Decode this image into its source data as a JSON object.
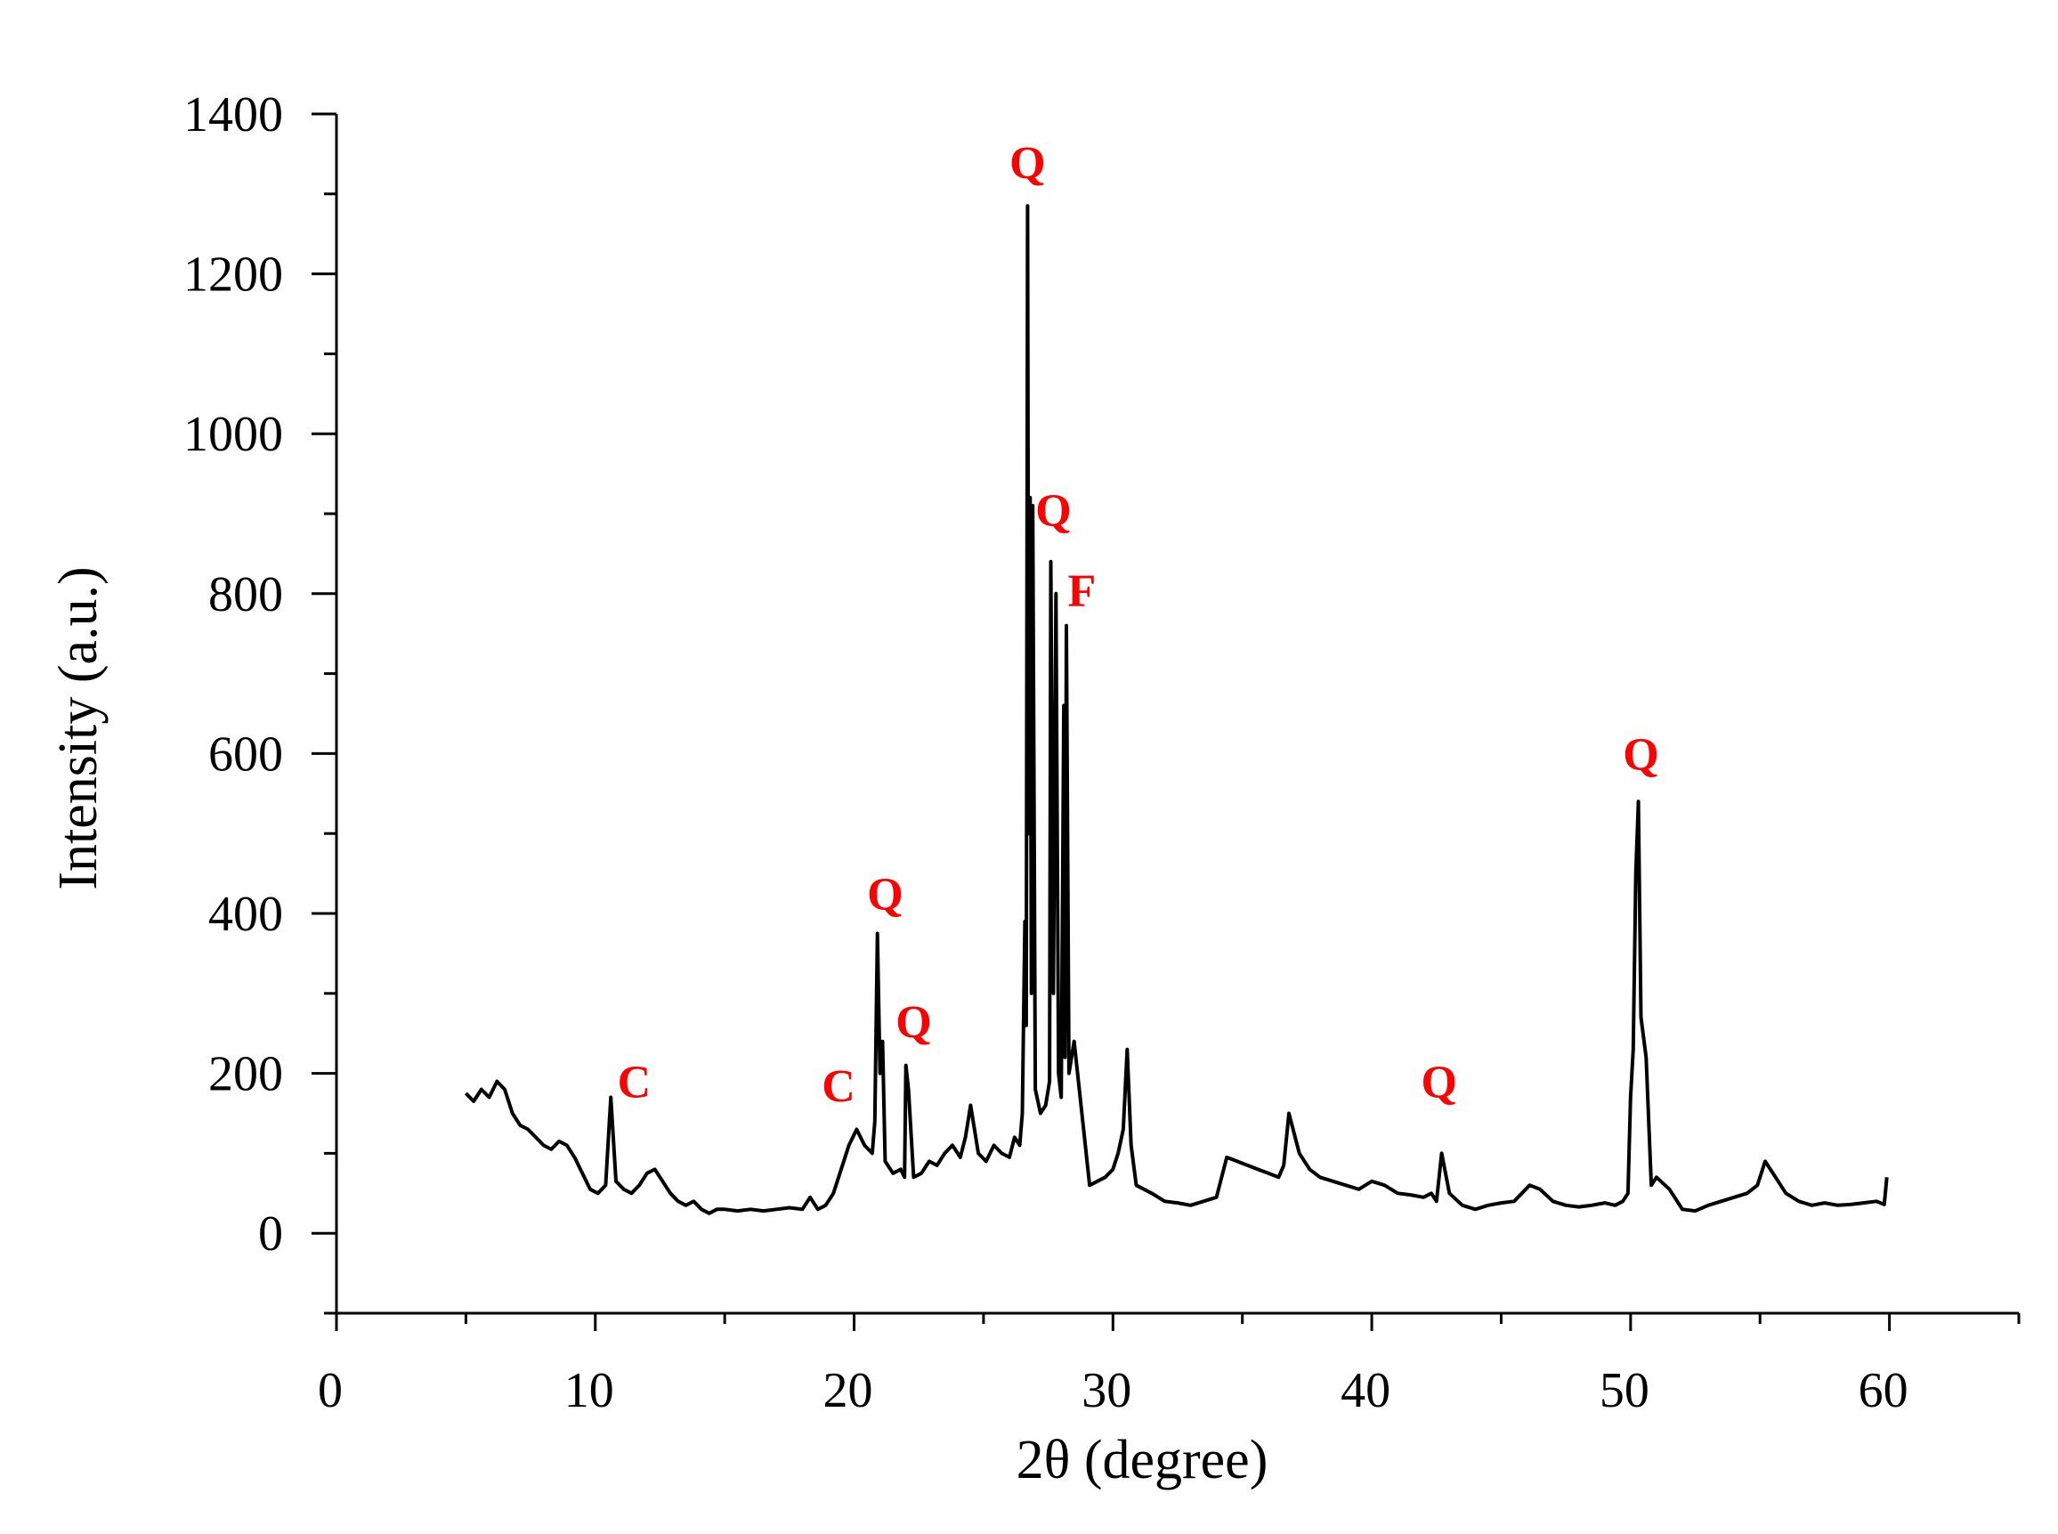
{
  "chart_data": {
    "type": "line",
    "title": "",
    "xlabel": "2θ (degree)",
    "ylabel": "Intensity (a.u.)",
    "xlim": [
      0,
      65
    ],
    "ylim": [
      -100,
      1400
    ],
    "xticks": [
      0,
      10,
      20,
      30,
      40,
      50,
      60
    ],
    "yticks": [
      0,
      200,
      400,
      600,
      800,
      1000,
      1200,
      1400
    ],
    "xtick_labels": [
      "0",
      "10",
      "20",
      "30",
      "40",
      "50",
      "60"
    ],
    "ytick_labels": [
      "0",
      "200",
      "400",
      "600",
      "800",
      "1000",
      "1200",
      "1400"
    ],
    "grid": false,
    "legend": "none",
    "colors": {
      "line": "#000000",
      "annotation": "#ff0000"
    },
    "series": [
      {
        "x": [
          5.0,
          5.3,
          5.6,
          5.9,
          6.2,
          6.5,
          6.8,
          7.1,
          7.4,
          7.7,
          8.0,
          8.3,
          8.6,
          8.9,
          9.2,
          9.5,
          9.8,
          10.1,
          10.4,
          10.6,
          10.8,
          11.1,
          11.4,
          11.7,
          12.0,
          12.3,
          12.6,
          12.9,
          13.2,
          13.5,
          13.8,
          14.1,
          14.4,
          14.7,
          15.0,
          15.5,
          16.0,
          16.5,
          17.0,
          17.5,
          18.0,
          18.3,
          18.6,
          18.9,
          19.2,
          19.5,
          19.8,
          20.1,
          20.4,
          20.7,
          20.8,
          20.9,
          21.0,
          21.1,
          21.2,
          21.5,
          21.8,
          21.95,
          22.0,
          22.1,
          22.3,
          22.6,
          22.9,
          23.2,
          23.5,
          23.8,
          24.1,
          24.3,
          24.5,
          24.8,
          25.1,
          25.4,
          25.7,
          26.0,
          26.2,
          26.4,
          26.5,
          26.6,
          26.65,
          26.7,
          26.75,
          26.8,
          26.85,
          26.9,
          27.0,
          27.2,
          27.4,
          27.55,
          27.6,
          27.7,
          27.8,
          27.9,
          28.0,
          28.1,
          28.15,
          28.2,
          28.3,
          28.5,
          28.8,
          29.1,
          29.4,
          29.7,
          30.0,
          30.2,
          30.4,
          30.55,
          30.7,
          30.9,
          31.2,
          31.5,
          32.0,
          32.5,
          33.0,
          33.5,
          34.0,
          34.4,
          34.8,
          35.2,
          35.6,
          36.0,
          36.4,
          36.6,
          36.8,
          37.2,
          37.6,
          38.0,
          38.5,
          39.0,
          39.5,
          40.0,
          40.5,
          41.0,
          41.5,
          42.0,
          42.3,
          42.5,
          42.7,
          43.0,
          43.5,
          44.0,
          44.5,
          45.0,
          45.5,
          45.8,
          46.1,
          46.5,
          47.0,
          47.5,
          48.0,
          48.5,
          49.0,
          49.4,
          49.7,
          49.9,
          50.0,
          50.1,
          50.2,
          50.3,
          50.4,
          50.6,
          50.8,
          51.0,
          51.5,
          52.0,
          52.5,
          53.0,
          53.5,
          54.0,
          54.5,
          54.9,
          55.2,
          55.6,
          56.0,
          56.5,
          57.0,
          57.5,
          58.0,
          58.5,
          59.0,
          59.5,
          59.8,
          59.9
        ],
        "y": [
          175,
          165,
          180,
          170,
          190,
          180,
          150,
          135,
          130,
          120,
          110,
          105,
          115,
          110,
          95,
          75,
          55,
          50,
          60,
          170,
          65,
          55,
          50,
          60,
          75,
          80,
          65,
          50,
          40,
          35,
          40,
          30,
          25,
          30,
          30,
          28,
          30,
          28,
          30,
          32,
          30,
          45,
          30,
          35,
          50,
          80,
          110,
          130,
          110,
          100,
          140,
          375,
          200,
          240,
          90,
          75,
          80,
          70,
          210,
          180,
          70,
          75,
          90,
          85,
          100,
          110,
          95,
          120,
          160,
          100,
          90,
          110,
          100,
          95,
          120,
          110,
          150,
          390,
          260,
          1285,
          500,
          920,
          300,
          910,
          180,
          150,
          160,
          190,
          840,
          300,
          800,
          200,
          170,
          660,
          220,
          760,
          200,
          240,
          150,
          60,
          65,
          70,
          80,
          100,
          130,
          230,
          110,
          60,
          55,
          50,
          40,
          38,
          35,
          40,
          45,
          95,
          90,
          85,
          80,
          75,
          70,
          85,
          150,
          100,
          80,
          70,
          65,
          60,
          55,
          65,
          60,
          50,
          48,
          45,
          50,
          40,
          100,
          50,
          35,
          30,
          35,
          38,
          40,
          50,
          60,
          55,
          40,
          35,
          33,
          35,
          38,
          35,
          40,
          50,
          170,
          230,
          450,
          540,
          270,
          220,
          60,
          70,
          55,
          30,
          28,
          35,
          40,
          45,
          50,
          60,
          90,
          70,
          50,
          40,
          35,
          38,
          35,
          36,
          38,
          40,
          36,
          70
        ]
      }
    ],
    "annotations": [
      {
        "text": "C",
        "x": 11.5,
        "y": 170
      },
      {
        "text": "C",
        "x": 19.4,
        "y": 165
      },
      {
        "text": "Q",
        "x": 21.2,
        "y": 405
      },
      {
        "text": "Q",
        "x": 22.3,
        "y": 245
      },
      {
        "text": "Q",
        "x": 26.7,
        "y": 1320
      },
      {
        "text": "Q",
        "x": 27.7,
        "y": 885
      },
      {
        "text": "F",
        "x": 28.8,
        "y": 785
      },
      {
        "text": "Q",
        "x": 42.6,
        "y": 170
      },
      {
        "text": "Q",
        "x": 50.4,
        "y": 580
      }
    ]
  }
}
